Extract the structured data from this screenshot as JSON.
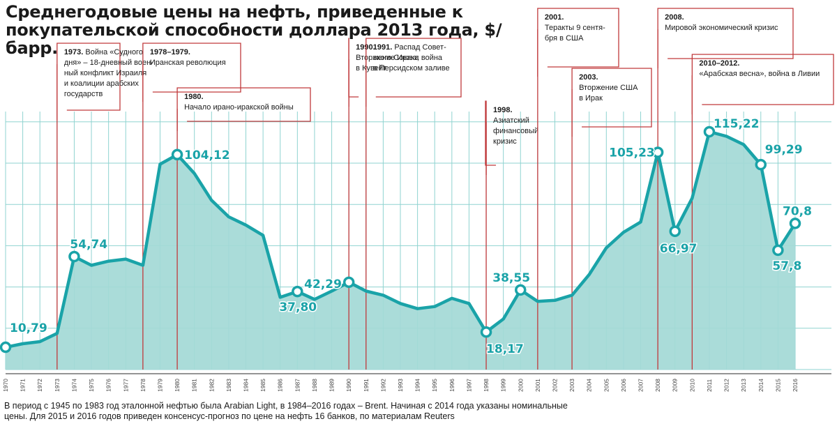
{
  "title": "Среднегодовые цены на нефть, приведенные к покупательской способности доллара 2013 года, $/барр.",
  "footnote_lines": [
    "В период с 1945 по 1983 год эталонной нефтью была Arabian Light, в 1984–2016 годах – Brent. Начиная с 2014 года указаны номинальные",
    "цены. Для 2015 и 2016 годов приведен консенсус-прогноз по цене на нефть 16 банков, по материалам Reuters"
  ],
  "colors": {
    "area": "#a3d9d6",
    "line": "#1aa3a8",
    "grid": "#8fd3d0",
    "annotation": "#c0393b"
  },
  "chart_data": {
    "type": "area",
    "x": [
      1970,
      1971,
      1972,
      1973,
      1974,
      1975,
      1976,
      1977,
      1978,
      1979,
      1980,
      1981,
      1982,
      1983,
      1984,
      1985,
      1986,
      1987,
      1988,
      1989,
      1990,
      1991,
      1992,
      1993,
      1994,
      1995,
      1996,
      1997,
      1998,
      1999,
      2000,
      2001,
      2002,
      2003,
      2004,
      2005,
      2006,
      2007,
      2008,
      2009,
      2010,
      2011,
      2012,
      2013,
      2014,
      2015,
      2016
    ],
    "values": [
      10.79,
      12.5,
      13.5,
      17.5,
      54.74,
      50.5,
      52.5,
      53.5,
      50.5,
      99.5,
      104.12,
      95,
      82,
      74,
      70,
      65,
      35,
      37.8,
      34,
      38,
      42.29,
      38,
      36,
      32,
      29.5,
      30.5,
      34.5,
      32,
      18.17,
      24.5,
      38.55,
      33,
      33.5,
      36,
      46,
      59,
      66.5,
      71.5,
      105.23,
      66.97,
      83,
      115.22,
      113,
      109,
      99.29,
      57.8,
      70.8
    ],
    "ylim": [
      0,
      125
    ],
    "highlights": [
      {
        "year": 1970,
        "label": "10,79"
      },
      {
        "year": 1974,
        "label": "54,74"
      },
      {
        "year": 1980,
        "label": "104,12"
      },
      {
        "year": 1987,
        "label": "37,80"
      },
      {
        "year": 1990,
        "label": "42,29"
      },
      {
        "year": 1998,
        "label": "18,17"
      },
      {
        "year": 2000,
        "label": "38,55"
      },
      {
        "year": 2008,
        "label": "105,23"
      },
      {
        "year": 2009,
        "label": "66,97"
      },
      {
        "year": 2011,
        "label": "115,22"
      },
      {
        "year": 2014,
        "label": "99,29"
      },
      {
        "year": 2015,
        "label": "57,8"
      },
      {
        "year": 2016,
        "label": "70,8"
      }
    ],
    "annotations": [
      {
        "year_marker": 1973,
        "year": "1973.",
        "lines": [
          "Война «Судного",
          "дня» – 18-дневный воен-",
          "ный конфликт Израиля",
          "и коалиции арабских",
          "государств"
        ]
      },
      {
        "year_marker": 1978,
        "year": "1978–1979.",
        "lines": [
          "Иранская революция"
        ]
      },
      {
        "year_marker": 1980,
        "year": "1980.",
        "lines": [
          "Начало ирано-иракской войны"
        ]
      },
      {
        "year_marker": 1990,
        "year": "1990.",
        "lines": [
          "Вторжение Ирака",
          "в Кувейт"
        ]
      },
      {
        "year_marker": 1991,
        "year": "1991.",
        "lines": [
          "Распад Совет-",
          "ского Союза; война",
          "в Персидском заливе"
        ]
      },
      {
        "year_marker": 1998,
        "year": "1998.",
        "lines": [
          "Азиатский",
          "финансовый",
          "кризис"
        ]
      },
      {
        "year_marker": 2001,
        "year": "2001.",
        "lines": [
          "Теракты 9 сентя-",
          "бря в США"
        ]
      },
      {
        "year_marker": 2003,
        "year": "2003.",
        "lines": [
          "Вторжение США",
          "в Ирак"
        ]
      },
      {
        "year_marker": 2008,
        "year": "2008.",
        "lines": [
          "Мировой экономический кризис"
        ]
      },
      {
        "year_marker": 2010,
        "year": "2010–2012.",
        "lines": [
          "«Арабская весна», война в Ливии"
        ]
      }
    ]
  }
}
